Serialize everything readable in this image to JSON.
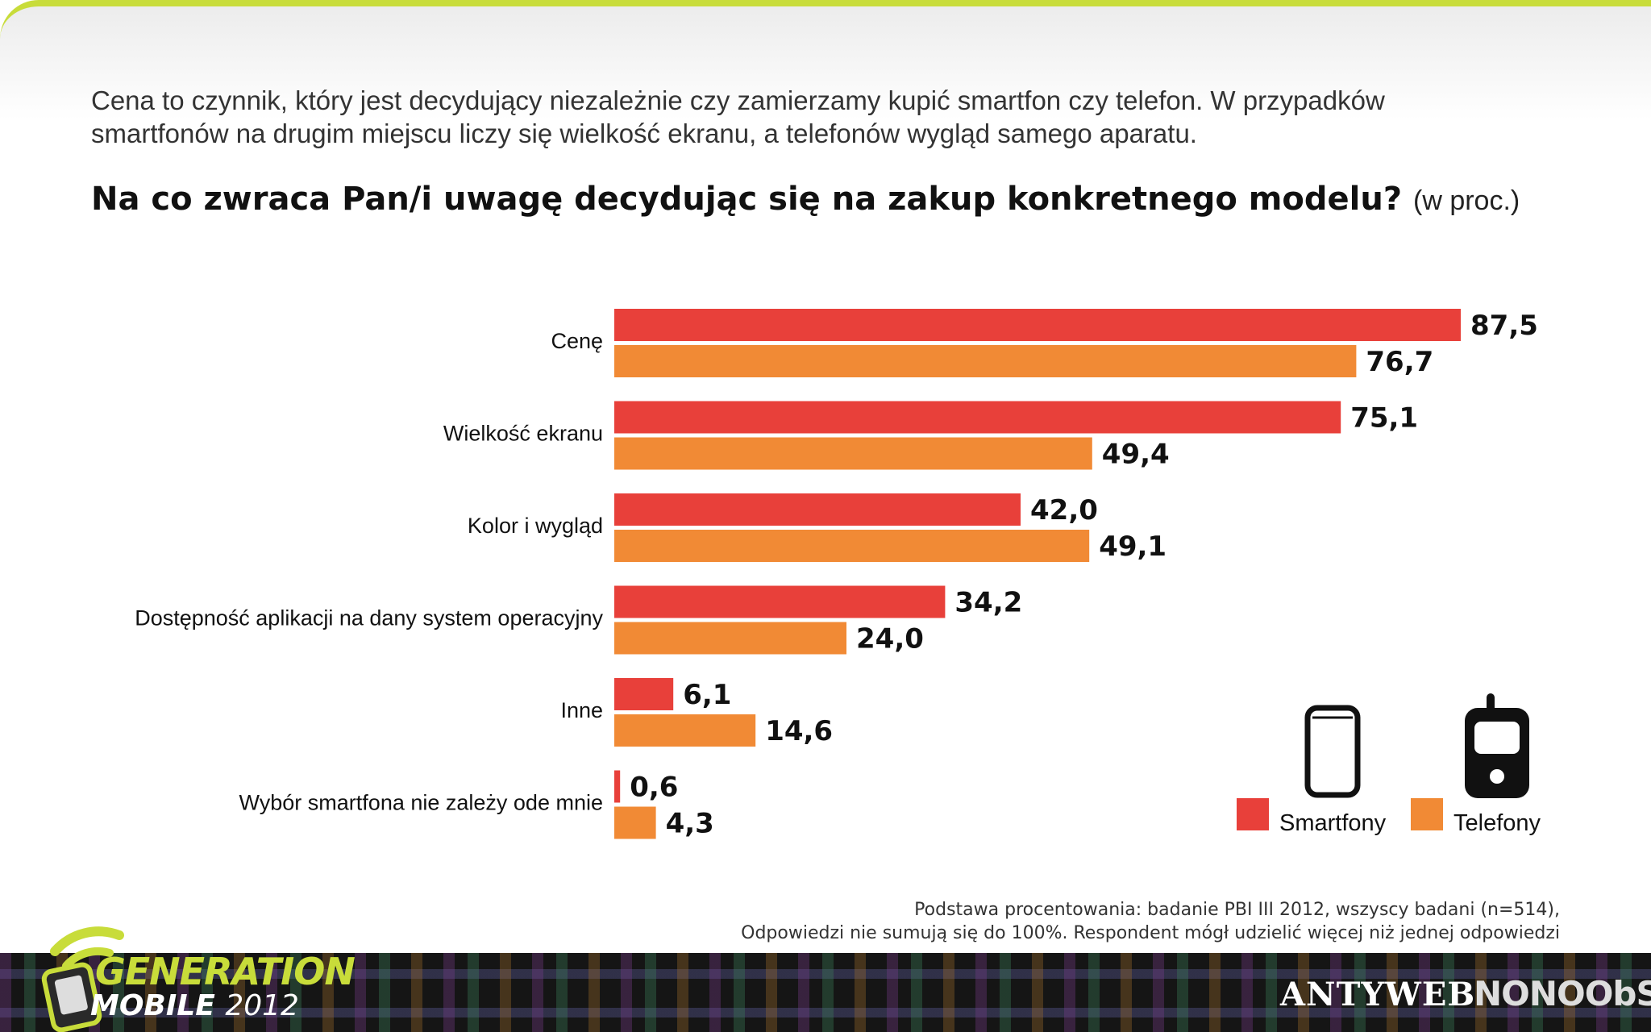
{
  "intro": {
    "line1": "Cena to czynnik, który jest decydujący niezależnie czy zamierzamy kupić smartfon czy telefon. W przypadków",
    "line2": "smartfonów na drugim miejscu liczy się wielkość ekranu, a telefonów wygląd samego aparatu."
  },
  "question": {
    "text": "Na co zwraca Pan/i uwagę decydując się na zakup konkretnego modelu?",
    "unit": "(w proc.)"
  },
  "colors": {
    "smartfony": "#e8403a",
    "telefony": "#f18a35"
  },
  "icons": {
    "smartfony": "smartphone-icon",
    "telefony": "mobile-phone-icon"
  },
  "chart_data": {
    "type": "bar",
    "orientation": "horizontal",
    "categories": [
      "Cenę",
      "Wielkość ekranu",
      "Kolor i wygląd",
      "Dostępność aplikacji na dany system operacyjny",
      "Inne",
      "Wybór smartfona nie zależy ode mnie"
    ],
    "series": [
      {
        "name": "Smartfony",
        "values": [
          87.5,
          75.1,
          42.0,
          34.2,
          6.1,
          0.6
        ],
        "labels": [
          "87,5",
          "75,1",
          "42,0",
          "34,2",
          "6,1",
          "0,6"
        ]
      },
      {
        "name": "Telefony",
        "values": [
          76.7,
          49.4,
          49.1,
          24.0,
          14.6,
          4.3
        ],
        "labels": [
          "76,7",
          "49,4",
          "49,1",
          "24,0",
          "14,6",
          "4,3"
        ]
      }
    ],
    "xlim": [
      0,
      100
    ],
    "grid": false,
    "legend": "bottom-right"
  },
  "footnote": {
    "line1": "Podstawa procentowania: badanie PBI III 2012, wszyscy badani (n=514),",
    "line2": "Odpowiedzi nie sumują się do 100%. Respondent mógł udzielić więcej niż jednej odpowiedzi"
  },
  "branding": {
    "gm_line1": "GENERATION",
    "gm_line2": "MOBILE",
    "gm_year": "2012",
    "antyweb": "ANTYWEB",
    "nonoobs": "NONOObS"
  }
}
